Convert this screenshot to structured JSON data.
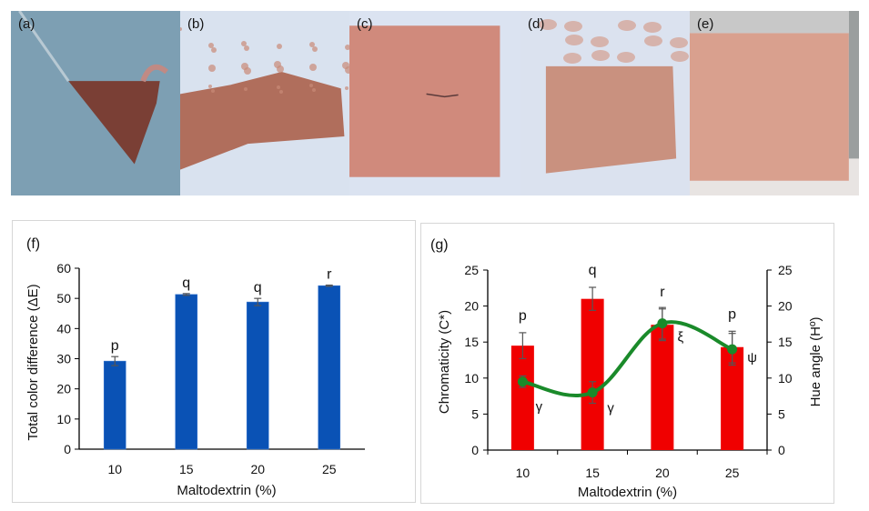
{
  "photos": [
    {
      "label": "(a)",
      "bg": "#7d9fb3",
      "powder": "#7a3f35"
    },
    {
      "label": "(b)",
      "bg": "#d9e2ef",
      "powder": "#b06e5c"
    },
    {
      "label": "(c)",
      "bg": "#dbe3f1",
      "powder": "#d08a7c"
    },
    {
      "label": "(d)",
      "bg": "#dbe2ef",
      "powder": "#c9917f"
    },
    {
      "label": "(e)",
      "bg": "#e8e4e2",
      "powder": "#d9a08e"
    }
  ],
  "chart_data": [
    {
      "panel_label": "(f)",
      "type": "bar",
      "title": "",
      "xlabel": "Maltodextrin (%)",
      "ylabel": "Total color difference (ΔE)",
      "categories": [
        "10",
        "15",
        "20",
        "25"
      ],
      "ylim": [
        0,
        60
      ],
      "yticks": [
        "0",
        "10",
        "20",
        "30",
        "40",
        "50",
        "60"
      ],
      "series": [
        {
          "name": "Total color difference",
          "color": "#0a52b5",
          "values": [
            29.2,
            51.3,
            48.8,
            54.2
          ],
          "errors": [
            1.5,
            0.3,
            1.2,
            0.2
          ],
          "letters": [
            "p",
            "q",
            "q",
            "r"
          ]
        }
      ],
      "grid": false
    },
    {
      "panel_label": "(g)",
      "type": "bar+line",
      "title": "",
      "xlabel": "Maltodextrin (%)",
      "ylabel": "Chromaticity (C*)",
      "y2label": "Hue angle (Hº)",
      "categories": [
        "10",
        "15",
        "20",
        "25"
      ],
      "ylim": [
        0,
        25
      ],
      "y2lim": [
        0,
        25
      ],
      "yticks": [
        "0",
        "5",
        "10",
        "15",
        "20",
        "25"
      ],
      "y2ticks": [
        "0",
        "5",
        "10",
        "15",
        "20",
        "25"
      ],
      "series": [
        {
          "name": "Chromaticity",
          "type": "bar",
          "axis": "left",
          "color": "#f00000",
          "values": [
            14.5,
            21.0,
            17.4,
            14.3
          ],
          "errors": [
            1.8,
            1.6,
            2.2,
            2.2
          ],
          "letters": [
            "p",
            "q",
            "r",
            "p"
          ]
        },
        {
          "name": "Hue angle",
          "type": "line",
          "axis": "right",
          "color": "#1a8a2a",
          "values": [
            9.5,
            8.0,
            17.6,
            14.0
          ],
          "errors": [
            0.8,
            1.5,
            2.2,
            2.2
          ],
          "letters": [
            "γ",
            "γ",
            "ξ",
            "ψ"
          ]
        }
      ],
      "grid": false
    }
  ]
}
